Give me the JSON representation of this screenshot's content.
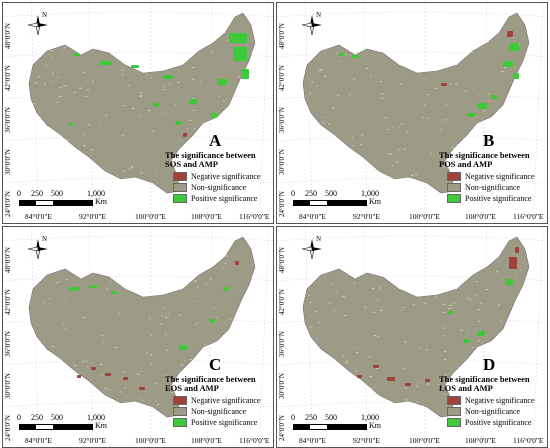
{
  "latitude_labels": [
    "24°0'0\"N",
    "30°0'0\"N",
    "36°0'0\"N",
    "42°0'0\"N",
    "48°0'0\"N"
  ],
  "longitude_labels": [
    "84°0'0\"E",
    "92°0'0\"E",
    "100°0'0\"E",
    "108°0'0\"E",
    "116°0'0\"E"
  ],
  "north_label": "N",
  "scale_labels": [
    "0",
    "250",
    "500",
    "1,000",
    "Km"
  ],
  "legend": [
    {
      "label": "Negative significance",
      "color": "#a0413a"
    },
    {
      "label": "Non-significance",
      "color": "#9d9a86"
    },
    {
      "label": "Positive significance",
      "color": "#3ec93a"
    }
  ],
  "panels": [
    {
      "letter": "A",
      "title_line1": "The significance between",
      "title_line2": "SOS and AMP"
    },
    {
      "letter": "B",
      "title_line1": "The significance between",
      "title_line2": "POS and AMP"
    },
    {
      "letter": "C",
      "title_line1": "The significance between",
      "title_line2": "EOS and AMP"
    },
    {
      "letter": "D",
      "title_line1": "The significance between",
      "title_line2": "LOS and AMP"
    }
  ]
}
